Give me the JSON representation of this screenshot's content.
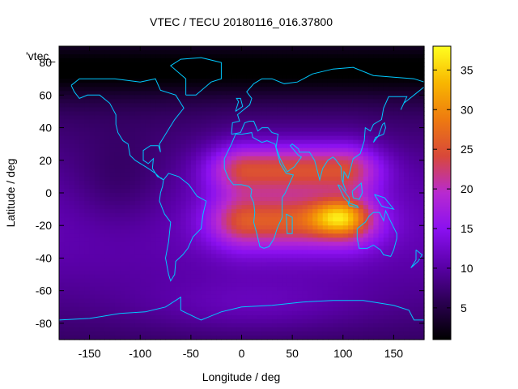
{
  "chart_data": {
    "type": "heatmap",
    "title": "VTEC / TECU 20180116_016.37800",
    "xlabel": "Longitude / deg",
    "ylabel": "Latitude / deg",
    "inset_label": "'vtec_",
    "xlim": [
      -180,
      180
    ],
    "ylim": [
      -90,
      90
    ],
    "x_ticks": [
      "-150",
      "-100",
      "-50",
      "0",
      "50",
      "100",
      "150"
    ],
    "x_tick_values": [
      -150,
      -100,
      -50,
      0,
      50,
      100,
      150
    ],
    "y_ticks": [
      "80",
      "60",
      "40",
      "20",
      "0",
      "-20",
      "-40",
      "-60",
      "-80"
    ],
    "y_tick_values": [
      80,
      60,
      40,
      20,
      0,
      -20,
      -40,
      -60,
      -80
    ],
    "colorbar": {
      "range": [
        1,
        38
      ],
      "ticks": [
        "35",
        "30",
        "25",
        "20",
        "15",
        "10",
        "5"
      ],
      "tick_values": [
        35,
        30,
        25,
        20,
        15,
        10,
        5
      ],
      "palette": [
        "#000000",
        "#2a0050",
        "#5a00a8",
        "#8a10f0",
        "#b82ad0",
        "#d8483a",
        "#ee7a10",
        "#f8b600",
        "#ffff20"
      ]
    },
    "features": {
      "peak": {
        "lon": 95,
        "lat": -15,
        "value": 37
      },
      "crest_north": {
        "lat": 15
      },
      "crest_south": {
        "lat": -18
      },
      "high_region_lon": [
        -30,
        135
      ]
    }
  }
}
